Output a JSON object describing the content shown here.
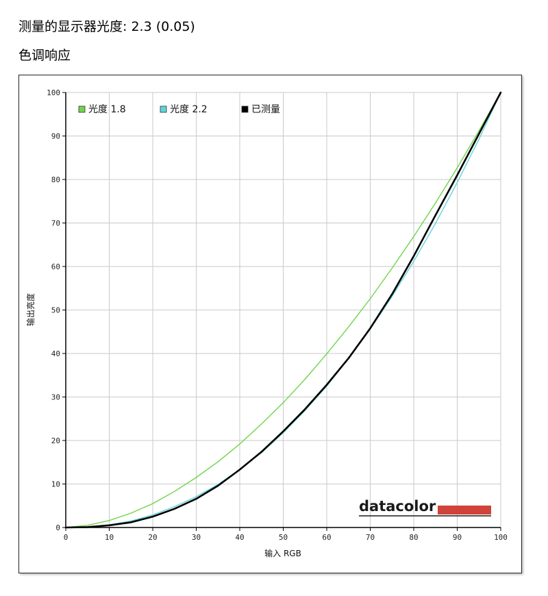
{
  "header": {
    "measured_gamma_label": "测量的显示器光度:  2.3 (0.05)",
    "section_title": "色调响应"
  },
  "brand": {
    "name": "datacolor",
    "accent_color": "#d0433a"
  },
  "chart_data": {
    "type": "line",
    "title": "",
    "xlabel": "输入 RGB",
    "ylabel": "输出亮度",
    "xlim": [
      0,
      100
    ],
    "ylim": [
      0,
      100
    ],
    "x_ticks": [
      0,
      10,
      20,
      30,
      40,
      50,
      60,
      70,
      80,
      90,
      100
    ],
    "y_ticks": [
      0,
      10,
      20,
      30,
      40,
      50,
      60,
      70,
      80,
      90,
      100
    ],
    "grid": true,
    "legend_position": "top-left",
    "x": [
      0,
      5,
      10,
      15,
      20,
      25,
      30,
      35,
      40,
      45,
      50,
      55,
      60,
      65,
      70,
      75,
      80,
      85,
      90,
      95,
      100
    ],
    "series": [
      {
        "name": "光度 1.8",
        "color": "#6fd44a",
        "values": [
          0,
          0.5,
          1.6,
          3.3,
          5.5,
          8.3,
          11.5,
          15.1,
          19.2,
          23.8,
          28.7,
          34.1,
          39.9,
          46.1,
          52.6,
          59.6,
          66.9,
          74.6,
          82.7,
          91.2,
          100
        ]
      },
      {
        "name": "光度 2.2",
        "color": "#5fd3dc",
        "values": [
          0,
          0.1,
          0.6,
          1.5,
          2.9,
          4.8,
          7.1,
          9.9,
          13.3,
          17.2,
          21.8,
          26.9,
          32.5,
          38.8,
          45.6,
          53.1,
          61.2,
          69.9,
          79.3,
          89.3,
          100
        ]
      },
      {
        "name": "已测量",
        "color": "#000000",
        "values": [
          0,
          0.1,
          0.5,
          1.2,
          2.5,
          4.3,
          6.6,
          9.6,
          13.3,
          17.4,
          22.1,
          27.2,
          32.8,
          38.9,
          45.8,
          53.6,
          62.4,
          71.8,
          81.0,
          90.5,
          100
        ]
      }
    ]
  }
}
